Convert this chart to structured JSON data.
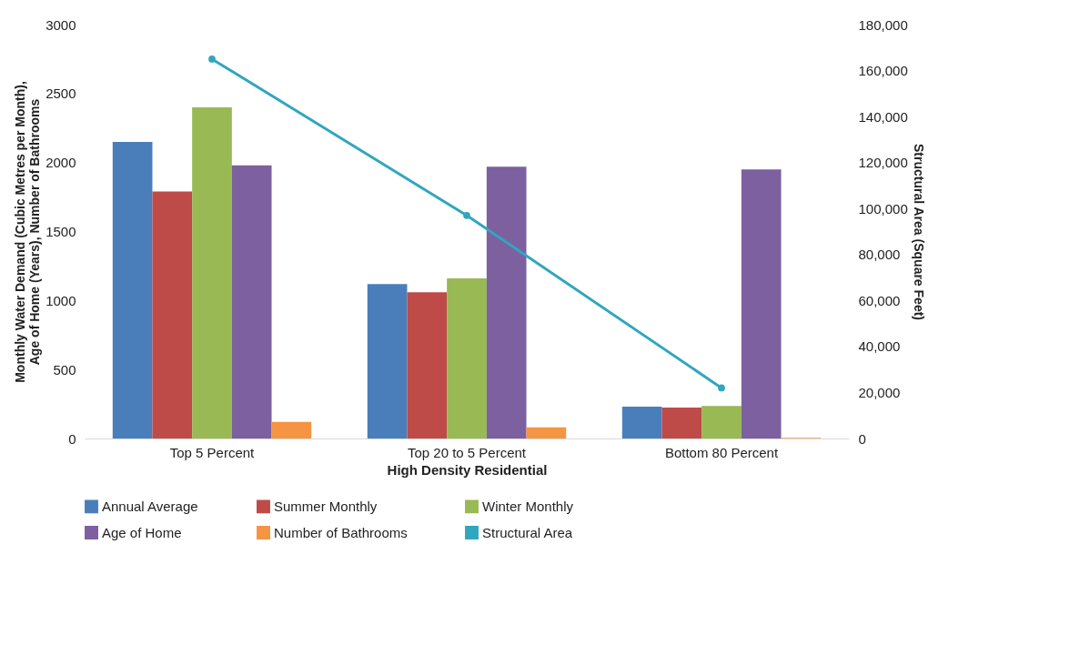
{
  "chart_data": {
    "type": "bar",
    "xlabel": "High Density Residential",
    "ylabel": "Monthly Water Demand (Cubic Metres per Month), Age of Home (Years), Number of Bathrooms",
    "y2label": "Structural Area (Square Feet)",
    "categories": [
      "Top 5 Percent",
      "Top 20 to 5 Percent",
      "Bottom 80 Percent"
    ],
    "series": [
      {
        "name": "Annual Average",
        "color": "#4a7ebb",
        "values": [
          2150,
          1120,
          230
        ]
      },
      {
        "name": "Summer Monthly",
        "color": "#be4b48",
        "values": [
          1790,
          1060,
          225
        ]
      },
      {
        "name": "Winter Monthly",
        "color": "#98b954",
        "values": [
          2400,
          1160,
          235
        ]
      },
      {
        "name": "Age of Home",
        "color": "#7d60a0",
        "values": [
          1980,
          1970,
          1950
        ]
      },
      {
        "name": "Number of Bathrooms",
        "color": "#f59443",
        "values": [
          120,
          80,
          5
        ]
      },
      {
        "name": "Structural Area",
        "type": "line",
        "axis": "y2",
        "color": "#31a6bf",
        "values": [
          165000,
          97000,
          22000
        ]
      }
    ],
    "ylim": [
      0,
      3000
    ],
    "yticks": [
      0,
      500,
      1000,
      1500,
      2000,
      2500,
      3000
    ],
    "y2lim": [
      0,
      180000
    ],
    "y2ticks": [
      {
        "value": 0,
        "label": "0"
      },
      {
        "value": 20000,
        "label": "20,000"
      },
      {
        "value": 40000,
        "label": "40,000"
      },
      {
        "value": 60000,
        "label": "60,000"
      },
      {
        "value": 80000,
        "label": "80,000"
      },
      {
        "value": 100000,
        "label": "100,000"
      },
      {
        "value": 120000,
        "label": "120,000"
      },
      {
        "value": 140000,
        "label": "140,000"
      },
      {
        "value": 160000,
        "label": "160,000"
      },
      {
        "value": 180000,
        "label": "180,000"
      }
    ],
    "marker": "circle",
    "legend": "bottom",
    "grid": false
  }
}
